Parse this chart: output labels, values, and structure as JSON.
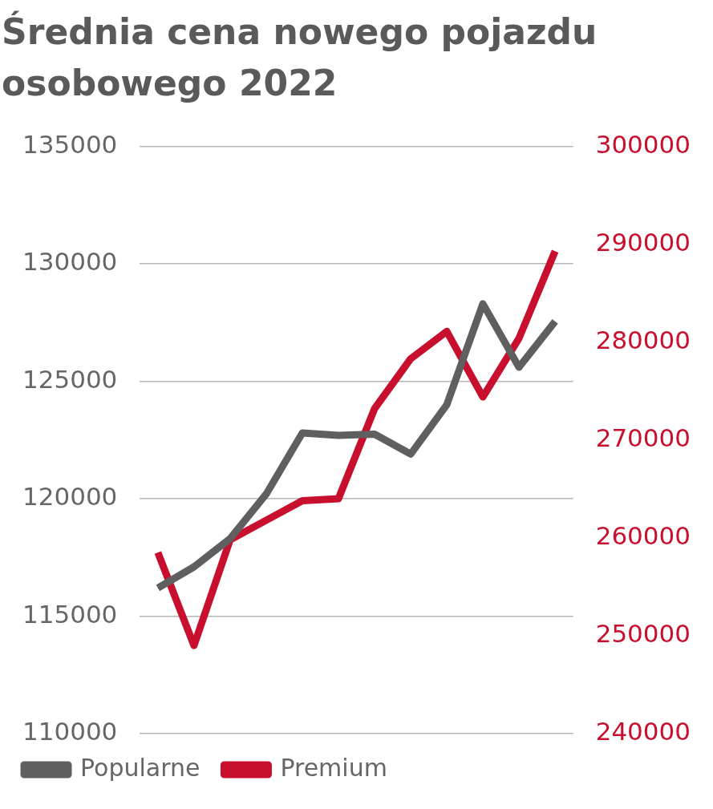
{
  "chart_data": {
    "type": "line",
    "title": "Średnia cena nowego pojazdu osobowego 2022",
    "categories": [
      null,
      null,
      null,
      null,
      null,
      null,
      null,
      null,
      null,
      null,
      null,
      null
    ],
    "series": [
      {
        "name": "Popularne",
        "color": "#5f5f5f",
        "values": [
          116200,
          117100,
          118300,
          120200,
          122800,
          122700,
          122750,
          121900,
          124000,
          128300,
          125600,
          127550
        ]
      },
      {
        "name": "Premium",
        "color": "#c8102e",
        "axis": "y2",
        "values": [
          258500,
          249000,
          259800,
          261800,
          263800,
          264000,
          273200,
          278300,
          281100,
          274400,
          280400,
          289300
        ]
      }
    ],
    "ylim": [
      110000,
      135000
    ],
    "yticks": [
      110000,
      115000,
      120000,
      125000,
      130000,
      135000
    ],
    "y2lim": [
      240000,
      300000
    ],
    "y2ticks": [
      240000,
      250000,
      260000,
      270000,
      280000,
      290000,
      300000
    ],
    "grid": "y",
    "legend": "bottom",
    "marker": "none",
    "line_style": "solid"
  }
}
